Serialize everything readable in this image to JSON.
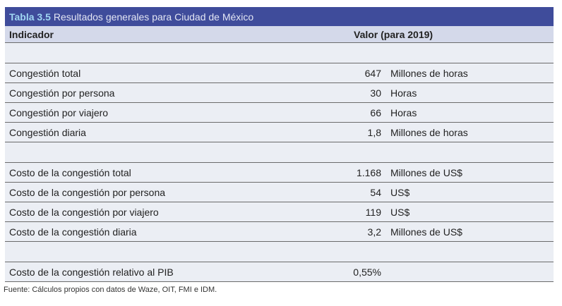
{
  "table": {
    "number": "Tabla 3.5",
    "title": "Resultados generales para Ciudad de México",
    "header": {
      "indicator": "Indicador",
      "value": "Valor (para 2019)"
    },
    "rows": [
      {
        "spacer": true
      },
      {
        "label": "Congestión total",
        "value": "647",
        "unit": "Millones de horas"
      },
      {
        "label": "Congestión por persona",
        "value": "30",
        "unit": "Horas"
      },
      {
        "label": "Congestión por viajero",
        "value": "66",
        "unit": "Horas"
      },
      {
        "label": "Congestión diaria",
        "value": "1,8",
        "unit": "Millones de horas"
      },
      {
        "spacer": true
      },
      {
        "label": "Costo de la congestión total",
        "value": "1.168",
        "unit": "Millones de US$"
      },
      {
        "label": "Costo de la congestión por persona",
        "value": "54",
        "unit": "US$"
      },
      {
        "label": "Costo de la congestión por viajero",
        "value": "119",
        "unit": "US$"
      },
      {
        "label": "Costo de la congestión diaria",
        "value": "3,2",
        "unit": "Millones de US$"
      },
      {
        "spacer": true
      },
      {
        "label": "Costo de la congestión relativo al PIB",
        "value": "0,55%",
        "unit": ""
      }
    ]
  },
  "source": "Fuente: Cálculos propios con datos de Waze, OIT, FMI e IDM.",
  "colors": {
    "title_bg": "#3f4c9b",
    "title_number": "#9fd6f2",
    "header_bg": "#d4d9ea",
    "row_bg": "#ebeef4"
  }
}
